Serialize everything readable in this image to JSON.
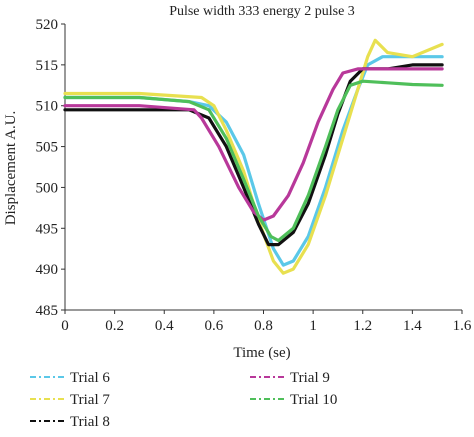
{
  "chart_data": {
    "type": "line",
    "title": "Pulse width 333 energy 2 pulse 3",
    "xlabel": "Time (se)",
    "ylabel": "Displacement A.U.",
    "xlim": [
      0,
      1.6
    ],
    "ylim": [
      485,
      520
    ],
    "x_ticks": [
      "0",
      "0.2",
      "0.4",
      "0.6",
      "0.8",
      "1",
      "1.2",
      "1.4",
      "1.6"
    ],
    "y_ticks": [
      "485",
      "490",
      "495",
      "500",
      "505",
      "510",
      "515",
      "520"
    ],
    "grid": false,
    "legend_position": "bottom",
    "series": [
      {
        "name": "Trial 6",
        "color": "#5bc8e8",
        "x": [
          0,
          0.3,
          0.5,
          0.58,
          0.65,
          0.72,
          0.78,
          0.84,
          0.88,
          0.92,
          0.98,
          1.05,
          1.12,
          1.18,
          1.22,
          1.28,
          1.35,
          1.45,
          1.52
        ],
        "y": [
          511,
          511,
          510.5,
          510,
          508,
          504,
          498,
          492.5,
          490.5,
          491,
          494,
          500,
          507,
          512,
          515,
          516,
          516,
          516,
          516
        ]
      },
      {
        "name": "Trial 7",
        "color": "#e8e050",
        "x": [
          0,
          0.3,
          0.55,
          0.6,
          0.65,
          0.72,
          0.78,
          0.84,
          0.88,
          0.92,
          0.98,
          1.05,
          1.12,
          1.18,
          1.22,
          1.25,
          1.3,
          1.4,
          1.52
        ],
        "y": [
          511.5,
          511.5,
          511,
          510,
          507,
          502,
          496,
          491,
          489.5,
          490,
          493,
          499,
          506,
          512,
          516,
          518,
          516.5,
          516,
          517.5
        ]
      },
      {
        "name": "Trial 8",
        "color": "#111111",
        "x": [
          0,
          0.3,
          0.5,
          0.58,
          0.65,
          0.72,
          0.78,
          0.82,
          0.86,
          0.92,
          0.98,
          1.05,
          1.1,
          1.15,
          1.2,
          1.3,
          1.4,
          1.52
        ],
        "y": [
          509.5,
          509.5,
          509.5,
          508.5,
          505,
          500,
          495.5,
          493,
          493,
          494.5,
          498,
          504,
          509,
          513,
          514.5,
          514.5,
          515,
          515
        ]
      },
      {
        "name": "Trial 9",
        "color": "#b8389a",
        "x": [
          0,
          0.3,
          0.52,
          0.55,
          0.62,
          0.7,
          0.76,
          0.8,
          0.84,
          0.9,
          0.96,
          1.02,
          1.08,
          1.12,
          1.18,
          1.3,
          1.4,
          1.52
        ],
        "y": [
          510,
          510,
          509.5,
          508.5,
          505,
          500,
          497,
          496,
          496.5,
          499,
          503,
          508,
          512,
          514,
          514.5,
          514.5,
          514.5,
          514.5
        ]
      },
      {
        "name": "Trial 10",
        "color": "#4fbf5a",
        "x": [
          0,
          0.3,
          0.5,
          0.58,
          0.65,
          0.72,
          0.78,
          0.83,
          0.86,
          0.92,
          0.98,
          1.05,
          1.1,
          1.15,
          1.2,
          1.3,
          1.4,
          1.52
        ],
        "y": [
          511,
          511,
          510.5,
          509.5,
          506,
          501,
          496.5,
          494,
          493.5,
          495,
          499,
          505,
          509.5,
          512.5,
          513,
          512.8,
          512.6,
          512.5
        ]
      }
    ]
  }
}
